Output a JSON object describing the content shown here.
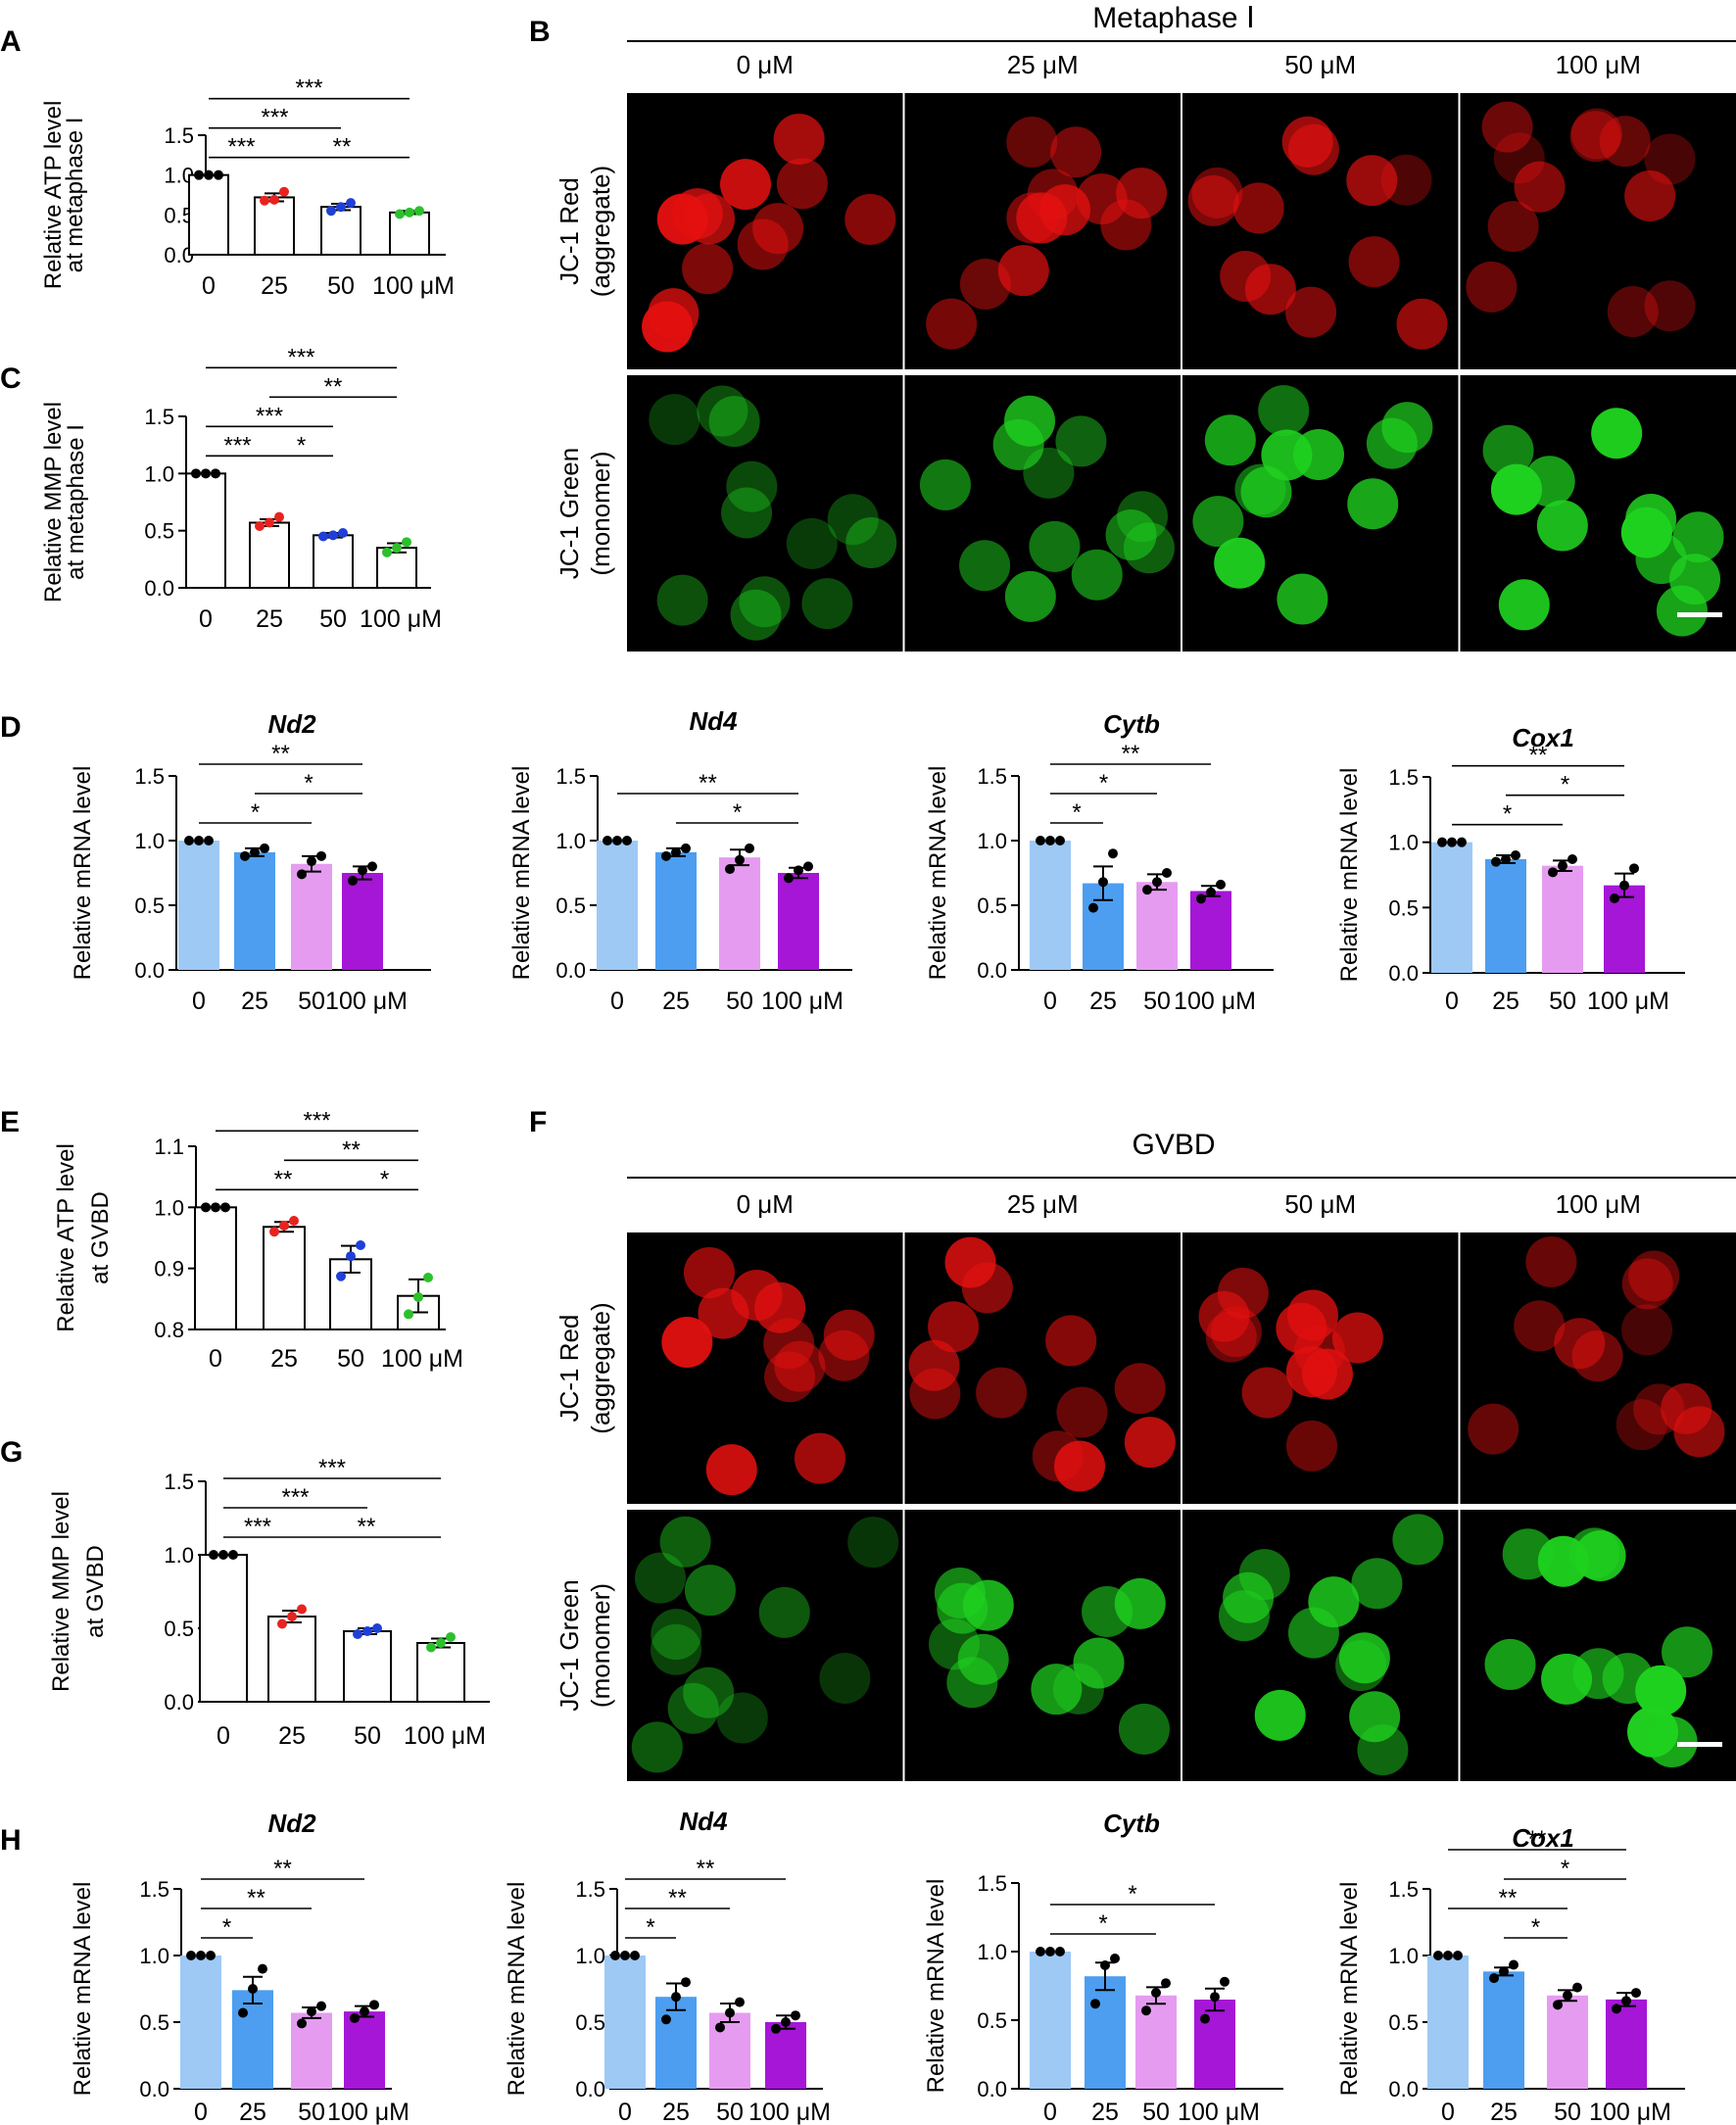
{
  "colors": {
    "red": "#e8231f",
    "blue": "#1f3fd6",
    "green": "#2cc02c",
    "bar_light_blue": "#9ec9f5",
    "bar_blue": "#4d9ef0",
    "bar_pink": "#e59cf0",
    "bar_purple": "#a516d6",
    "img_red": "#e41010",
    "img_green": "#1fd11f"
  },
  "panels": {
    "A": "A",
    "B": "B",
    "C": "C",
    "D": "D",
    "E": "E",
    "F": "F",
    "G": "G",
    "H": "H"
  },
  "micrographs": {
    "B": {
      "title": "Metaphase Ⅰ",
      "columns": [
        "0 μM",
        "25 μM",
        "50 μM",
        "100 μM"
      ],
      "rows": [
        "JC-1 Red (aggregate)",
        "JC-1 Green (monomer)"
      ],
      "red_intensity": [
        0.85,
        0.75,
        0.6,
        0.55
      ],
      "green_intensity": [
        0.4,
        0.7,
        0.9,
        1.0
      ]
    },
    "F": {
      "title": "GVBD",
      "columns": [
        "0 μM",
        "25 μM",
        "50 μM",
        "100 μM"
      ],
      "rows": [
        "JC-1 Red (aggregate)",
        "JC-1 Green (monomer)"
      ],
      "red_intensity": [
        0.85,
        0.8,
        0.75,
        0.55
      ],
      "green_intensity": [
        0.45,
        0.75,
        0.8,
        1.0
      ]
    }
  },
  "chart_data": [
    {
      "id": "A",
      "type": "bar",
      "style": "open",
      "categories": [
        "0",
        "25",
        "50",
        "100 μM"
      ],
      "ylabel": [
        "Relative ATP level",
        "at metaphase I"
      ],
      "ylim": [
        0,
        1.5
      ],
      "yticks": [
        "0.0",
        "0.5",
        "1.0",
        "1.5"
      ],
      "values": [
        1.0,
        0.72,
        0.6,
        0.53
      ],
      "errors": [
        0.0,
        0.05,
        0.04,
        0.02
      ],
      "points": [
        [
          1.0,
          1.0,
          1.0
        ],
        [
          0.68,
          0.69,
          0.79
        ],
        [
          0.55,
          0.6,
          0.65
        ],
        [
          0.51,
          0.53,
          0.55
        ]
      ],
      "brackets": [
        {
          "from": 0,
          "to": 1,
          "label": "***"
        },
        {
          "from": 0,
          "to": 2,
          "label": "***"
        },
        {
          "from": 0,
          "to": 3,
          "label": "***"
        },
        {
          "from": 1,
          "to": 3,
          "label": "**"
        }
      ]
    },
    {
      "id": "C",
      "type": "bar",
      "style": "open",
      "categories": [
        "0",
        "25",
        "50",
        "100 μM"
      ],
      "ylabel": [
        "Relative MMP level",
        "at metaphase I"
      ],
      "ylim": [
        0,
        1.5
      ],
      "yticks": [
        "0.0",
        "0.5",
        "1.0",
        "1.5"
      ],
      "values": [
        1.0,
        0.57,
        0.46,
        0.35
      ],
      "errors": [
        0.0,
        0.03,
        0.02,
        0.04
      ],
      "points": [
        [
          1.0,
          1.0,
          1.0
        ],
        [
          0.54,
          0.57,
          0.62
        ],
        [
          0.45,
          0.46,
          0.48
        ],
        [
          0.31,
          0.35,
          0.4
        ]
      ],
      "brackets": [
        {
          "from": 0,
          "to": 1,
          "label": "***"
        },
        {
          "from": 0,
          "to": 2,
          "label": "***"
        },
        {
          "from": 0,
          "to": 3,
          "label": "***"
        },
        {
          "from": 1,
          "to": 2,
          "label": "*"
        },
        {
          "from": 1,
          "to": 3,
          "label": "**"
        }
      ]
    },
    {
      "id": "D1",
      "type": "bar",
      "style": "filled",
      "title": "Nd2",
      "categories": [
        "0",
        "25",
        "50",
        "100 μM"
      ],
      "ylabel": [
        "Relative mRNA level"
      ],
      "ylim": [
        0,
        1.5
      ],
      "yticks": [
        "0.0",
        "0.5",
        "1.0",
        "1.5"
      ],
      "values": [
        1.0,
        0.91,
        0.82,
        0.75
      ],
      "errors": [
        0.0,
        0.03,
        0.06,
        0.05
      ],
      "points": [
        [
          1.0,
          1.0,
          1.0
        ],
        [
          0.88,
          0.91,
          0.94
        ],
        [
          0.74,
          0.84,
          0.88
        ],
        [
          0.69,
          0.77,
          0.8
        ]
      ],
      "brackets": [
        {
          "from": 0,
          "to": 2,
          "label": "*"
        },
        {
          "from": 0,
          "to": 3,
          "label": "**"
        },
        {
          "from": 1,
          "to": 3,
          "label": "*"
        }
      ]
    },
    {
      "id": "D2",
      "type": "bar",
      "style": "filled",
      "title": "Nd4",
      "categories": [
        "0",
        "25",
        "50",
        "100 μM"
      ],
      "ylabel": [
        "Relative mRNA level"
      ],
      "ylim": [
        0,
        1.5
      ],
      "yticks": [
        "0.0",
        "0.5",
        "1.0",
        "1.5"
      ],
      "values": [
        1.0,
        0.91,
        0.87,
        0.75
      ],
      "errors": [
        0.0,
        0.03,
        0.06,
        0.04
      ],
      "points": [
        [
          1.0,
          1.0,
          1.0
        ],
        [
          0.88,
          0.91,
          0.94
        ],
        [
          0.78,
          0.85,
          0.94
        ],
        [
          0.71,
          0.77,
          0.8
        ]
      ],
      "brackets": [
        {
          "from": 0,
          "to": 3,
          "label": "**"
        },
        {
          "from": 1,
          "to": 3,
          "label": "*"
        }
      ]
    },
    {
      "id": "D3",
      "type": "bar",
      "style": "filled",
      "title": "Cytb",
      "categories": [
        "0",
        "25",
        "50",
        "100 μM"
      ],
      "ylabel": [
        "Relative mRNA level"
      ],
      "ylim": [
        0,
        1.5
      ],
      "yticks": [
        "0.0",
        "0.5",
        "1.0",
        "1.5"
      ],
      "values": [
        1.0,
        0.67,
        0.68,
        0.61
      ],
      "errors": [
        0.0,
        0.13,
        0.06,
        0.04
      ],
      "points": [
        [
          1.0,
          1.0,
          1.0
        ],
        [
          0.48,
          0.68,
          0.9
        ],
        [
          0.62,
          0.68,
          0.75
        ],
        [
          0.55,
          0.6,
          0.66
        ]
      ],
      "brackets": [
        {
          "from": 0,
          "to": 1,
          "label": "*"
        },
        {
          "from": 0,
          "to": 2,
          "label": "*"
        },
        {
          "from": 0,
          "to": 3,
          "label": "**"
        }
      ]
    },
    {
      "id": "D4",
      "type": "bar",
      "style": "filled",
      "title": "Cox1",
      "categories": [
        "0",
        "25",
        "50",
        "100 μM"
      ],
      "ylabel": [
        "Relative mRNA level"
      ],
      "ylim": [
        0,
        1.5
      ],
      "yticks": [
        "0.0",
        "0.5",
        "1.0",
        "1.5"
      ],
      "values": [
        1.0,
        0.87,
        0.82,
        0.67
      ],
      "errors": [
        0.0,
        0.03,
        0.04,
        0.09
      ],
      "points": [
        [
          1.0,
          1.0,
          1.0
        ],
        [
          0.85,
          0.87,
          0.9
        ],
        [
          0.77,
          0.82,
          0.87
        ],
        [
          0.57,
          0.67,
          0.8
        ]
      ],
      "brackets": [
        {
          "from": 0,
          "to": 2,
          "label": "*"
        },
        {
          "from": 0,
          "to": 3,
          "label": "**"
        },
        {
          "from": 1,
          "to": 3,
          "label": "*"
        }
      ]
    },
    {
      "id": "E",
      "type": "bar",
      "style": "open",
      "categories": [
        "0",
        "25",
        "50",
        "100 μM"
      ],
      "ylabel": [
        "Relative ATP level",
        "at GVBD"
      ],
      "ylim": [
        0.8,
        1.1
      ],
      "yticks": [
        "0.8",
        "0.9",
        "1.0",
        "1.1"
      ],
      "values": [
        1.0,
        0.968,
        0.915,
        0.855
      ],
      "errors": [
        0.0,
        0.008,
        0.022,
        0.027
      ],
      "points": [
        [
          1.0,
          1.0,
          1.0
        ],
        [
          0.96,
          0.97,
          0.978
        ],
        [
          0.887,
          0.92,
          0.938
        ],
        [
          0.825,
          0.853,
          0.885
        ]
      ],
      "brackets": [
        {
          "from": 0,
          "to": 2,
          "label": "**"
        },
        {
          "from": 0,
          "to": 3,
          "label": "***"
        },
        {
          "from": 1,
          "to": 3,
          "label": "**"
        },
        {
          "from": 2,
          "to": 3,
          "label": "*"
        }
      ]
    },
    {
      "id": "G",
      "type": "bar",
      "style": "open",
      "categories": [
        "0",
        "25",
        "50",
        "100 μM"
      ],
      "ylabel": [
        "Relative MMP level",
        "at GVBD"
      ],
      "ylim": [
        0,
        1.5
      ],
      "yticks": [
        "0.0",
        "0.5",
        "1.0",
        "1.5"
      ],
      "values": [
        1.0,
        0.58,
        0.48,
        0.4
      ],
      "errors": [
        0.0,
        0.04,
        0.02,
        0.03
      ],
      "points": [
        [
          1.0,
          1.0,
          1.0
        ],
        [
          0.53,
          0.58,
          0.63
        ],
        [
          0.46,
          0.48,
          0.5
        ],
        [
          0.37,
          0.4,
          0.44
        ]
      ],
      "brackets": [
        {
          "from": 0,
          "to": 1,
          "label": "***"
        },
        {
          "from": 0,
          "to": 2,
          "label": "***"
        },
        {
          "from": 0,
          "to": 3,
          "label": "***"
        },
        {
          "from": 1,
          "to": 3,
          "label": "**"
        }
      ]
    },
    {
      "id": "H1",
      "type": "bar",
      "style": "filled",
      "title": "Nd2",
      "categories": [
        "0",
        "25",
        "50",
        "100 μM"
      ],
      "ylabel": [
        "Relative mRNA level"
      ],
      "ylim": [
        0,
        1.5
      ],
      "yticks": [
        "0.0",
        "0.5",
        "1.0",
        "1.5"
      ],
      "values": [
        1.0,
        0.74,
        0.57,
        0.58
      ],
      "errors": [
        0.0,
        0.1,
        0.04,
        0.04
      ],
      "points": [
        [
          1.0,
          1.0,
          1.0
        ],
        [
          0.57,
          0.75,
          0.9
        ],
        [
          0.49,
          0.58,
          0.62
        ],
        [
          0.53,
          0.58,
          0.63
        ]
      ],
      "brackets": [
        {
          "from": 0,
          "to": 1,
          "label": "*"
        },
        {
          "from": 0,
          "to": 2,
          "label": "**"
        },
        {
          "from": 0,
          "to": 3,
          "label": "**"
        }
      ]
    },
    {
      "id": "H2",
      "type": "bar",
      "style": "filled",
      "title": "Nd4",
      "categories": [
        "0",
        "25",
        "50",
        "100 μM"
      ],
      "ylabel": [
        "Relative mRNA level"
      ],
      "ylim": [
        0,
        1.5
      ],
      "yticks": [
        "0.0",
        "0.5",
        "1.0",
        "1.5"
      ],
      "values": [
        1.0,
        0.69,
        0.57,
        0.5
      ],
      "errors": [
        0.0,
        0.1,
        0.07,
        0.05
      ],
      "points": [
        [
          1.0,
          1.0,
          1.0
        ],
        [
          0.52,
          0.69,
          0.8
        ],
        [
          0.46,
          0.57,
          0.65
        ],
        [
          0.45,
          0.5,
          0.55
        ]
      ],
      "brackets": [
        {
          "from": 0,
          "to": 1,
          "label": "*"
        },
        {
          "from": 0,
          "to": 2,
          "label": "**"
        },
        {
          "from": 0,
          "to": 3,
          "label": "**"
        }
      ]
    },
    {
      "id": "H3",
      "type": "bar",
      "style": "filled",
      "title": "Cytb",
      "categories": [
        "0",
        "25",
        "50",
        "100 μM"
      ],
      "ylabel": [
        "Relative mRNA level"
      ],
      "ylim": [
        0,
        1.5
      ],
      "yticks": [
        "0.0",
        "0.5",
        "1.0",
        "1.5"
      ],
      "values": [
        1.0,
        0.82,
        0.68,
        0.65
      ],
      "errors": [
        0.0,
        0.1,
        0.06,
        0.08
      ],
      "points": [
        [
          1.0,
          1.0,
          1.0
        ],
        [
          0.62,
          0.9,
          0.95
        ],
        [
          0.57,
          0.7,
          0.77
        ],
        [
          0.51,
          0.67,
          0.78
        ]
      ],
      "brackets": [
        {
          "from": 0,
          "to": 2,
          "label": "*"
        },
        {
          "from": 0,
          "to": 3,
          "label": "*"
        }
      ]
    },
    {
      "id": "H4",
      "type": "bar",
      "style": "filled",
      "title": "Cox1",
      "categories": [
        "0",
        "25",
        "50",
        "100 μM"
      ],
      "ylabel": [
        "Relative mRNA level"
      ],
      "ylim": [
        0,
        1.5
      ],
      "yticks": [
        "0.0",
        "0.5",
        "1.0",
        "1.5"
      ],
      "values": [
        1.0,
        0.88,
        0.7,
        0.67
      ],
      "errors": [
        0.0,
        0.03,
        0.04,
        0.05
      ],
      "points": [
        [
          1.0,
          1.0,
          1.0
        ],
        [
          0.83,
          0.88,
          0.93
        ],
        [
          0.63,
          0.7,
          0.76
        ],
        [
          0.6,
          0.66,
          0.72
        ]
      ],
      "brackets": [
        {
          "from": 0,
          "to": 2,
          "label": "**"
        },
        {
          "from": 0,
          "to": 3,
          "label": "**"
        },
        {
          "from": 1,
          "to": 2,
          "label": "*"
        },
        {
          "from": 1,
          "to": 3,
          "label": "*"
        }
      ]
    }
  ]
}
